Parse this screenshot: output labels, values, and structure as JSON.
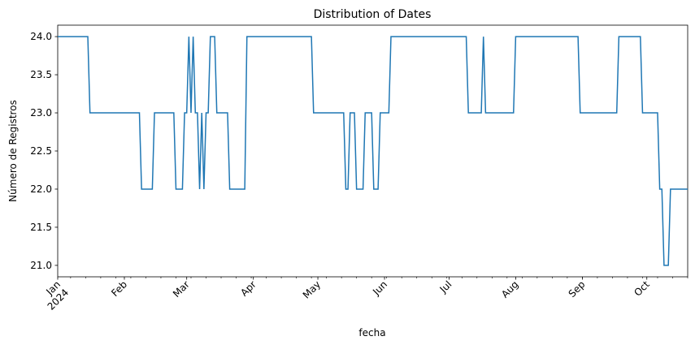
{
  "chart_data": {
    "type": "line",
    "title": "Distribution of Dates",
    "xlabel": "fecha",
    "ylabel": "Número de Registros",
    "ylim": [
      20.85,
      24.15
    ],
    "xlim": [
      "2024-01-01",
      "2024-10-20"
    ],
    "yticks": [
      "21.0",
      "21.5",
      "22.0",
      "22.5",
      "23.0",
      "23.5",
      "24.0"
    ],
    "xticks": [
      {
        "date": "2024-01-01",
        "label": "Jan",
        "label2": "2024"
      },
      {
        "date": "2024-02-01",
        "label": "Feb"
      },
      {
        "date": "2024-03-01",
        "label": "Mar"
      },
      {
        "date": "2024-04-01",
        "label": "Apr"
      },
      {
        "date": "2024-05-01",
        "label": "May"
      },
      {
        "date": "2024-06-01",
        "label": "Jun"
      },
      {
        "date": "2024-07-01",
        "label": "Jul"
      },
      {
        "date": "2024-08-01",
        "label": "Aug"
      },
      {
        "date": "2024-09-01",
        "label": "Sep"
      },
      {
        "date": "2024-10-01",
        "label": "Oct"
      }
    ],
    "line_color": "#1f77b4",
    "grid": false,
    "series": [
      {
        "points": [
          [
            "2024-01-01",
            24
          ],
          [
            "2024-01-15",
            24
          ],
          [
            "2024-01-16",
            23
          ],
          [
            "2024-02-08",
            23
          ],
          [
            "2024-02-09",
            22
          ],
          [
            "2024-02-14",
            22
          ],
          [
            "2024-02-15",
            23
          ],
          [
            "2024-02-24",
            23
          ],
          [
            "2024-02-25",
            22
          ],
          [
            "2024-02-28",
            22
          ],
          [
            "2024-02-29",
            23
          ],
          [
            "2024-03-01",
            23
          ],
          [
            "2024-03-02",
            24
          ],
          [
            "2024-03-03",
            23
          ],
          [
            "2024-03-04",
            24
          ],
          [
            "2024-03-05",
            23
          ],
          [
            "2024-03-06",
            23
          ],
          [
            "2024-03-07",
            22
          ],
          [
            "2024-03-08",
            23
          ],
          [
            "2024-03-09",
            22
          ],
          [
            "2024-03-10",
            23
          ],
          [
            "2024-03-11",
            23
          ],
          [
            "2024-03-12",
            24
          ],
          [
            "2024-03-14",
            24
          ],
          [
            "2024-03-15",
            23
          ],
          [
            "2024-03-20",
            23
          ],
          [
            "2024-03-21",
            22
          ],
          [
            "2024-03-28",
            22
          ],
          [
            "2024-03-29",
            24
          ],
          [
            "2024-04-28",
            24
          ],
          [
            "2024-04-29",
            23
          ],
          [
            "2024-05-13",
            23
          ],
          [
            "2024-05-14",
            22
          ],
          [
            "2024-05-15",
            22
          ],
          [
            "2024-05-16",
            23
          ],
          [
            "2024-05-18",
            23
          ],
          [
            "2024-05-19",
            22
          ],
          [
            "2024-05-22",
            22
          ],
          [
            "2024-05-23",
            23
          ],
          [
            "2024-05-26",
            23
          ],
          [
            "2024-05-27",
            22
          ],
          [
            "2024-05-29",
            22
          ],
          [
            "2024-05-30",
            23
          ],
          [
            "2024-06-03",
            23
          ],
          [
            "2024-06-04",
            24
          ],
          [
            "2024-07-09",
            24
          ],
          [
            "2024-07-10",
            23
          ],
          [
            "2024-07-16",
            23
          ],
          [
            "2024-07-17",
            24
          ],
          [
            "2024-07-18",
            23
          ],
          [
            "2024-07-31",
            23
          ],
          [
            "2024-08-01",
            24
          ],
          [
            "2024-08-30",
            24
          ],
          [
            "2024-08-31",
            23
          ],
          [
            "2024-09-17",
            23
          ],
          [
            "2024-09-18",
            24
          ],
          [
            "2024-09-28",
            24
          ],
          [
            "2024-09-29",
            23
          ],
          [
            "2024-10-06",
            23
          ],
          [
            "2024-10-07",
            22
          ],
          [
            "2024-10-08",
            22
          ],
          [
            "2024-10-09",
            21
          ],
          [
            "2024-10-11",
            21
          ],
          [
            "2024-10-12",
            22
          ],
          [
            "2024-10-20",
            22
          ]
        ]
      }
    ]
  }
}
